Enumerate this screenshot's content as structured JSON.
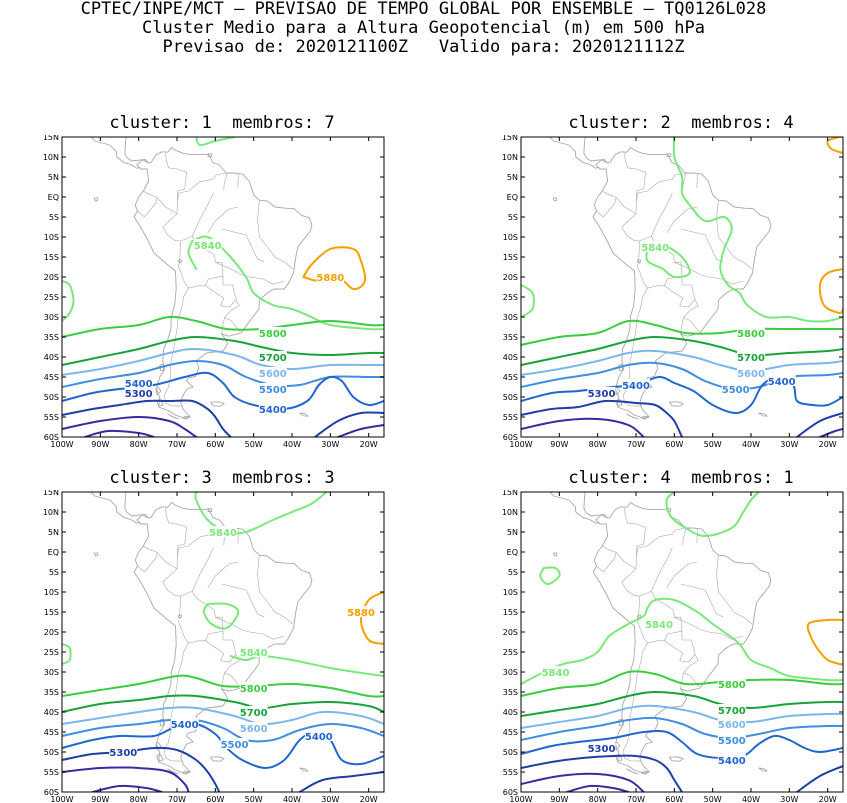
{
  "header": {
    "line1": "CPTEC/INPE/MCT – PREVISAO DE TEMPO GLOBAL POR ENSEMBLE – TQ0126L028",
    "line2": "Cluster Medio para a Altura Geopotencial (m) em 500 hPa",
    "line3": "Previsao de: 2020121100Z   Valido para: 2020121112Z"
  },
  "axes": {
    "lat_labels": [
      "15N",
      "10N",
      "5N",
      "EQ",
      "5S",
      "10S",
      "15S",
      "20S",
      "25S",
      "30S",
      "35S",
      "40S",
      "45S",
      "50S",
      "55S",
      "60S"
    ],
    "lon_labels": [
      "100W",
      "90W",
      "80W",
      "70W",
      "60W",
      "50W",
      "40W",
      "30W",
      "20W"
    ]
  },
  "colors": {
    "5300": "#1e3fa8",
    "5400": "#2166d0",
    "5500": "#3f8ee0",
    "5600": "#7cb7ec",
    "5700": "#18a33a",
    "5800": "#3ccc42",
    "5840": "#7ae87a",
    "5880": "#f5a000",
    "low": "#3a2aa0",
    "coast": "#a8a8a8"
  },
  "panels": [
    {
      "title": "cluster: 1  membros: 7",
      "labels": [
        {
          "text": "5840",
          "lon": -62,
          "lat": -12,
          "level": "5840"
        },
        {
          "text": "5880",
          "lon": -30,
          "lat": -20,
          "level": "5880"
        },
        {
          "text": "5800",
          "lon": -45,
          "lat": -34,
          "level": "5800"
        },
        {
          "text": "5700",
          "lon": -45,
          "lat": -40,
          "level": "5700"
        },
        {
          "text": "5600",
          "lon": -45,
          "lat": -44,
          "level": "5600"
        },
        {
          "text": "5500",
          "lon": -45,
          "lat": -48,
          "level": "5500"
        },
        {
          "text": "5400",
          "lon": -80,
          "lat": -46.5,
          "level": "5400"
        },
        {
          "text": "5300",
          "lon": -80,
          "lat": -49,
          "level": "5300"
        },
        {
          "text": "5400",
          "lon": -45,
          "lat": -53,
          "level": "5400"
        }
      ]
    },
    {
      "title": "cluster: 2  membros: 4",
      "labels": [
        {
          "text": "5840",
          "lon": -65,
          "lat": -12.5,
          "level": "5840"
        },
        {
          "text": "5800",
          "lon": -40,
          "lat": -34,
          "level": "5800"
        },
        {
          "text": "5700",
          "lon": -40,
          "lat": -40,
          "level": "5700"
        },
        {
          "text": "5600",
          "lon": -40,
          "lat": -44,
          "level": "5600"
        },
        {
          "text": "5500",
          "lon": -44,
          "lat": -48,
          "level": "5500"
        },
        {
          "text": "5400",
          "lon": -70,
          "lat": -47,
          "level": "5400"
        },
        {
          "text": "5300",
          "lon": -79,
          "lat": -49,
          "level": "5300"
        },
        {
          "text": "5400",
          "lon": -32,
          "lat": -46,
          "level": "5400"
        }
      ]
    },
    {
      "title": "cluster: 3  membros: 3",
      "labels": [
        {
          "text": "5840",
          "lon": -58,
          "lat": 5,
          "level": "5840"
        },
        {
          "text": "5880",
          "lon": -22,
          "lat": -15,
          "level": "5880"
        },
        {
          "text": "5840",
          "lon": -50,
          "lat": -25,
          "level": "5840"
        },
        {
          "text": "5800",
          "lon": -50,
          "lat": -34,
          "level": "5800"
        },
        {
          "text": "5700",
          "lon": -50,
          "lat": -40,
          "level": "5700"
        },
        {
          "text": "5600",
          "lon": -50,
          "lat": -44,
          "level": "5600"
        },
        {
          "text": "5500",
          "lon": -55,
          "lat": -48,
          "level": "5500"
        },
        {
          "text": "5400",
          "lon": -68,
          "lat": -43,
          "level": "5400"
        },
        {
          "text": "5300",
          "lon": -84,
          "lat": -50,
          "level": "5300"
        },
        {
          "text": "5400",
          "lon": -33,
          "lat": -46,
          "level": "5400"
        }
      ]
    },
    {
      "title": "cluster: 4  membros: 1",
      "labels": [
        {
          "text": "5840",
          "lon": -64,
          "lat": -18,
          "level": "5840"
        },
        {
          "text": "5840",
          "lon": -91,
          "lat": -30,
          "level": "5840"
        },
        {
          "text": "5800",
          "lon": -45,
          "lat": -33,
          "level": "5800"
        },
        {
          "text": "5700",
          "lon": -45,
          "lat": -39.5,
          "level": "5700"
        },
        {
          "text": "5600",
          "lon": -45,
          "lat": -43,
          "level": "5600"
        },
        {
          "text": "5500",
          "lon": -45,
          "lat": -47,
          "level": "5500"
        },
        {
          "text": "5300",
          "lon": -79,
          "lat": -49,
          "level": "5300"
        },
        {
          "text": "5400",
          "lon": -45,
          "lat": -52,
          "level": "5400"
        }
      ]
    }
  ]
}
